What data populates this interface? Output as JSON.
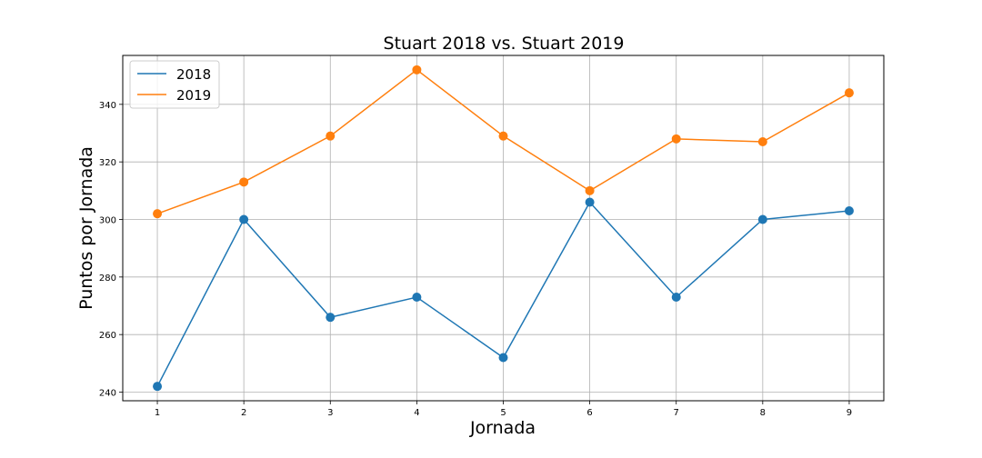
{
  "chart_data": {
    "type": "line",
    "title": "Stuart 2018 vs. Stuart 2019",
    "xlabel": "Jornada",
    "ylabel": "Puntos por Jornada",
    "x": [
      1,
      2,
      3,
      4,
      5,
      6,
      7,
      8,
      9
    ],
    "x_ticks": [
      "1",
      "2",
      "3",
      "4",
      "5",
      "6",
      "7",
      "8",
      "9"
    ],
    "y_ticks": [
      "240",
      "260",
      "280",
      "300",
      "320",
      "340"
    ],
    "xlim": [
      0.6,
      9.4
    ],
    "ylim": [
      237,
      357
    ],
    "grid": true,
    "legend_position": "top-left",
    "series": [
      {
        "name": "2018",
        "color": "#1f77b4",
        "values": [
          242,
          300,
          266,
          273,
          252,
          306,
          273,
          300,
          303
        ]
      },
      {
        "name": "2019",
        "color": "#ff7f0e",
        "values": [
          302,
          313,
          329,
          352,
          329,
          310,
          328,
          327,
          344
        ]
      }
    ]
  }
}
